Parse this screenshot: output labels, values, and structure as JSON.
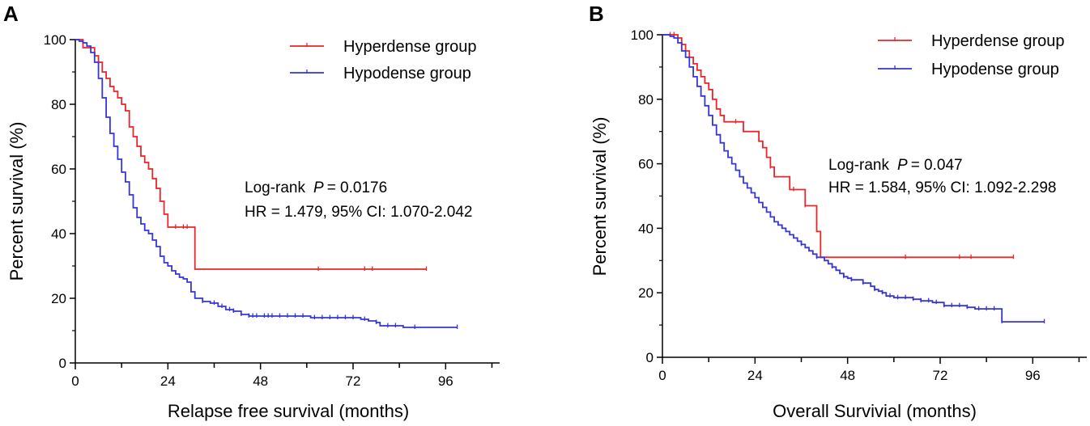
{
  "chart_data": [
    {
      "panel_label": "A",
      "type": "line",
      "xlabel": "Relapse free survival (months)",
      "ylabel": "Percent survival (%)",
      "xlim": [
        0,
        110
      ],
      "ylim": [
        0,
        100
      ],
      "xticks": [
        0,
        24,
        48,
        72,
        96
      ],
      "yticks": [
        0,
        20,
        40,
        60,
        80,
        100
      ],
      "annotation": {
        "line1_prefix": "Log-rank",
        "line1_p": "P",
        "line1_value": "= 0.0176",
        "line2": "HR = 1.479, 95% CI:  1.070-2.042"
      },
      "series": [
        {
          "name": "Hyperdense group",
          "color": "#e8262a",
          "step_points": [
            [
              0,
              100
            ],
            [
              2,
              97.5
            ],
            [
              5,
              95
            ],
            [
              6,
              93
            ],
            [
              7,
              90
            ],
            [
              8,
              88
            ],
            [
              9,
              85.5
            ],
            [
              10,
              84
            ],
            [
              11,
              82
            ],
            [
              12,
              80
            ],
            [
              13,
              78
            ],
            [
              14,
              73
            ],
            [
              15,
              70
            ],
            [
              16,
              67
            ],
            [
              17,
              64
            ],
            [
              18,
              62
            ],
            [
              19,
              60
            ],
            [
              20,
              57
            ],
            [
              21,
              54
            ],
            [
              22,
              50
            ],
            [
              23,
              46
            ],
            [
              24,
              42
            ],
            [
              30,
              42
            ],
            [
              31,
              29
            ],
            [
              91,
              29
            ]
          ],
          "censor_x": [
            26,
            28,
            29,
            63,
            75,
            77,
            91
          ]
        },
        {
          "name": "Hypodense group",
          "color": "#3535d6",
          "step_points": [
            [
              0,
              100
            ],
            [
              1,
              99.5
            ],
            [
              2,
              99
            ],
            [
              3,
              98
            ],
            [
              4,
              96
            ],
            [
              5,
              93
            ],
            [
              6,
              88
            ],
            [
              7,
              82
            ],
            [
              8,
              76
            ],
            [
              9,
              71
            ],
            [
              10,
              67
            ],
            [
              11,
              63
            ],
            [
              12,
              59
            ],
            [
              13,
              56
            ],
            [
              14,
              52
            ],
            [
              15,
              48
            ],
            [
              16,
              45
            ],
            [
              17,
              43
            ],
            [
              18,
              41
            ],
            [
              19,
              40
            ],
            [
              20,
              38
            ],
            [
              21,
              36
            ],
            [
              22,
              33
            ],
            [
              23,
              31
            ],
            [
              24,
              30
            ],
            [
              25,
              28.5
            ],
            [
              26,
              27.5
            ],
            [
              27,
              26.5
            ],
            [
              28,
              26
            ],
            [
              29,
              25
            ],
            [
              30,
              22
            ],
            [
              31,
              20
            ],
            [
              33,
              19
            ],
            [
              35,
              18.5
            ],
            [
              37,
              17.5
            ],
            [
              39,
              16.5
            ],
            [
              41,
              16
            ],
            [
              43,
              15
            ],
            [
              45,
              14.5
            ],
            [
              60,
              14.5
            ],
            [
              61,
              14
            ],
            [
              72,
              14
            ],
            [
              74,
              13.5
            ],
            [
              76,
              13
            ],
            [
              78,
              12.5
            ],
            [
              79,
              11.5
            ],
            [
              85,
              11
            ],
            [
              99,
              11
            ]
          ],
          "censor_x": [
            33,
            36,
            38,
            40,
            41,
            43,
            45,
            46,
            47,
            49,
            50,
            51,
            53,
            55,
            57,
            59,
            62,
            64,
            66,
            68,
            70,
            72,
            75,
            78,
            81,
            83,
            88,
            99
          ]
        }
      ]
    },
    {
      "panel_label": "B",
      "type": "line",
      "xlabel": "Overall Survivial (months)",
      "ylabel": "Percent survival (%)",
      "xlim": [
        0,
        110
      ],
      "ylim": [
        0,
        100
      ],
      "xticks": [
        0,
        24,
        48,
        72,
        96
      ],
      "yticks": [
        0,
        20,
        40,
        60,
        80,
        100
      ],
      "annotation": {
        "line1_prefix": "Log-rank",
        "line1_p": "P",
        "line1_value": "= 0.047",
        "line2": "HR = 1.584, 95% CI:  1.092-2.298"
      },
      "series": [
        {
          "name": "Hyperdense group",
          "color": "#e8262a",
          "step_points": [
            [
              0,
              100
            ],
            [
              4,
              99
            ],
            [
              5,
              97
            ],
            [
              6,
              95
            ],
            [
              7,
              93
            ],
            [
              8,
              91
            ],
            [
              9,
              89
            ],
            [
              10,
              87
            ],
            [
              11,
              85
            ],
            [
              12,
              83
            ],
            [
              13,
              80
            ],
            [
              14,
              77
            ],
            [
              15,
              75
            ],
            [
              16,
              73
            ],
            [
              20,
              73
            ],
            [
              21,
              70
            ],
            [
              24,
              70
            ],
            [
              25,
              67
            ],
            [
              26,
              65
            ],
            [
              27,
              62
            ],
            [
              28,
              59
            ],
            [
              29,
              56
            ],
            [
              32,
              56
            ],
            [
              33,
              52
            ],
            [
              36,
              52
            ],
            [
              37,
              47
            ],
            [
              39,
              47
            ],
            [
              40,
              39
            ],
            [
              41,
              31
            ],
            [
              91,
              31
            ]
          ],
          "censor_x": [
            2,
            3,
            5,
            19,
            28,
            34,
            37,
            63,
            77,
            80,
            91
          ]
        },
        {
          "name": "Hypodense group",
          "color": "#3535d6",
          "step_points": [
            [
              0,
              100
            ],
            [
              2,
              99.5
            ],
            [
              3,
              99
            ],
            [
              4,
              97.5
            ],
            [
              5,
              95
            ],
            [
              6,
              93
            ],
            [
              7,
              90
            ],
            [
              8,
              87
            ],
            [
              9,
              84
            ],
            [
              10,
              81
            ],
            [
              11,
              78
            ],
            [
              12,
              75
            ],
            [
              13,
              72
            ],
            [
              14,
              69
            ],
            [
              15,
              66.5
            ],
            [
              16,
              64
            ],
            [
              17,
              62
            ],
            [
              18,
              60
            ],
            [
              19,
              58
            ],
            [
              20,
              56
            ],
            [
              21,
              54
            ],
            [
              22,
              52.5
            ],
            [
              23,
              51
            ],
            [
              24,
              49.5
            ],
            [
              25,
              48
            ],
            [
              26,
              46.5
            ],
            [
              27,
              45
            ],
            [
              28,
              43.5
            ],
            [
              29,
              42
            ],
            [
              30,
              41
            ],
            [
              31,
              40
            ],
            [
              32,
              39
            ],
            [
              33,
              38
            ],
            [
              34,
              37
            ],
            [
              35,
              36
            ],
            [
              36,
              35
            ],
            [
              37,
              34
            ],
            [
              38,
              33
            ],
            [
              39,
              32
            ],
            [
              40,
              31
            ],
            [
              42,
              30
            ],
            [
              43,
              29
            ],
            [
              44,
              28
            ],
            [
              45,
              27
            ],
            [
              46,
              26
            ],
            [
              47,
              25
            ],
            [
              48,
              24.5
            ],
            [
              49,
              24
            ],
            [
              52,
              23
            ],
            [
              54,
              22
            ],
            [
              55,
              21
            ],
            [
              56,
              20.5
            ],
            [
              57,
              20
            ],
            [
              58,
              19
            ],
            [
              60,
              18.5
            ],
            [
              65,
              18
            ],
            [
              67,
              17.5
            ],
            [
              70,
              17
            ],
            [
              73,
              16
            ],
            [
              78,
              16
            ],
            [
              79,
              15.5
            ],
            [
              81,
              15
            ],
            [
              87,
              15
            ],
            [
              88,
              11
            ],
            [
              99,
              11
            ]
          ],
          "censor_x": [
            36,
            40,
            44,
            47,
            49,
            52,
            55,
            57,
            59,
            61,
            63,
            65,
            67,
            69,
            71,
            73,
            75,
            77,
            79,
            82,
            84,
            86,
            88,
            99
          ]
        }
      ]
    }
  ]
}
